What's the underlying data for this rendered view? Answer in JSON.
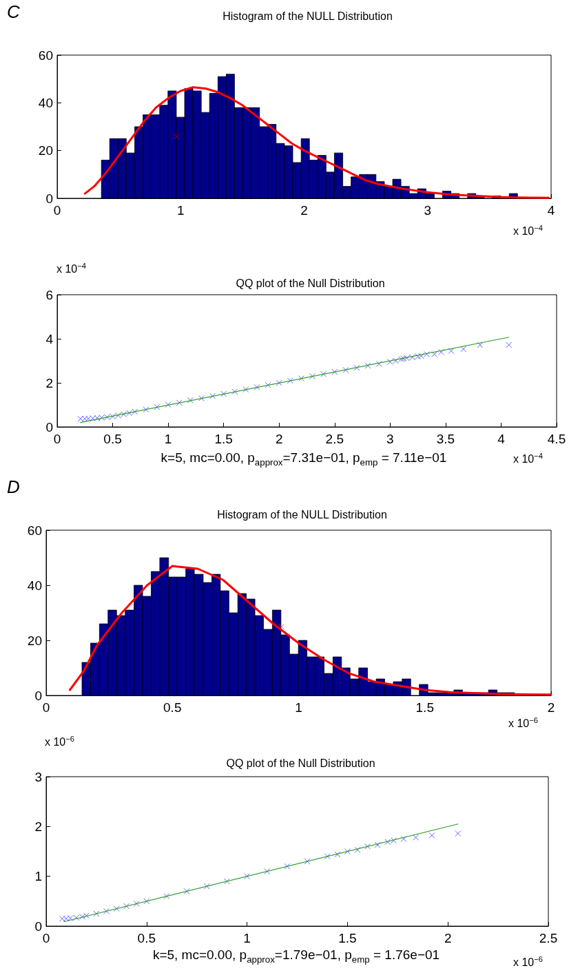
{
  "chart_data": [
    {
      "type": "histogram",
      "title": "Histogram of the NULL Distribution",
      "annotations": [
        "C",
        "x 10$^{−4}$"
      ],
      "xlim": [
        0,
        4
      ],
      "xticks": [
        0,
        1,
        2,
        3,
        4
      ],
      "ylim": [
        0,
        60
      ],
      "yticks": [
        0,
        20,
        40,
        60
      ],
      "grid": false,
      "series": [
        {
          "color": "#00008b",
          "bins": [
            0.358,
            0.425,
            0.493,
            0.56,
            0.628,
            0.695,
            0.762,
            0.83,
            0.897,
            0.965,
            1.032,
            1.099,
            1.167,
            1.234,
            1.302,
            1.369,
            1.436,
            1.504,
            1.571,
            1.639,
            1.706,
            1.773,
            1.841,
            1.908,
            1.976,
            2.043,
            2.11,
            2.178,
            2.245,
            2.313,
            2.38,
            2.447,
            2.515,
            2.582,
            2.65,
            2.717,
            2.784,
            2.852,
            2.919,
            2.987,
            3.054,
            3.121,
            3.189,
            3.256,
            3.324,
            3.391,
            3.458,
            3.526,
            3.593,
            3.661,
            3.728
          ],
          "values": [
            16,
            25,
            25,
            19,
            30,
            35,
            35,
            39,
            45,
            34,
            46,
            45,
            36,
            44,
            51,
            52,
            38,
            38,
            38,
            30,
            31,
            23,
            22,
            15,
            25,
            16,
            18,
            11,
            19,
            5,
            9,
            10,
            10,
            7,
            5,
            8,
            5,
            2,
            4,
            2,
            0,
            3,
            2,
            0,
            2,
            1,
            null,
            1,
            0,
            2
          ]
        },
        {
          "type": "line",
          "color": "#ff0000",
          "x": [
            0.225,
            0.3,
            0.4,
            0.5,
            0.6,
            0.7,
            0.8,
            0.9,
            1.0,
            1.1,
            1.2,
            1.3,
            1.4,
            1.5,
            1.6,
            1.7,
            1.8,
            1.9,
            2.0,
            2.1,
            2.2,
            2.3,
            2.4,
            2.5,
            2.6,
            2.8,
            3.0,
            3.2,
            3.4,
            3.6,
            3.8,
            3.98
          ],
          "values": [
            2,
            5,
            11,
            18,
            25,
            32,
            38,
            42,
            45,
            46.5,
            46,
            44.5,
            42,
            39,
            35,
            31,
            27,
            23,
            20,
            17.5,
            15,
            12.5,
            10,
            7.5,
            6,
            4,
            2.5,
            1.5,
            1,
            0.5,
            0.3,
            0.2
          ]
        },
        {
          "type": "scatter",
          "color": "#cc0000",
          "marker": "cross",
          "x": [
            0.967
          ],
          "values": [
            26
          ]
        }
      ]
    },
    {
      "type": "scatter",
      "title": "QQ plot of the Null Distribution",
      "annotations": [
        "x 10$^{−4}$",
        "x 10$^{−4}$",
        "k=5, mc=0.00, p$_{approx}$=7.31e−01, p$_{emp}$ = 7.11e−01"
      ],
      "xlim": [
        0,
        4.5
      ],
      "xticks": [
        0,
        0.5,
        1,
        1.5,
        2,
        2.5,
        3,
        3.5,
        4,
        4.5
      ],
      "ylim": [
        0,
        6
      ],
      "yticks": [
        0,
        2,
        4,
        6
      ],
      "grid": false,
      "series": [
        {
          "color": "#3c3cff",
          "marker": "cross",
          "x": [
            0.21,
            0.25,
            0.28,
            0.32,
            0.36,
            0.4,
            0.45,
            0.5,
            0.55,
            0.6,
            0.65,
            0.7,
            0.8,
            0.9,
            1.0,
            1.1,
            1.2,
            1.3,
            1.4,
            1.5,
            1.6,
            1.7,
            1.8,
            1.9,
            2.0,
            2.1,
            2.2,
            2.3,
            2.4,
            2.5,
            2.6,
            2.7,
            2.8,
            2.9,
            3.0,
            3.05,
            3.1,
            3.12,
            3.15,
            3.2,
            3.25,
            3.28,
            3.33,
            3.4,
            3.46,
            3.55,
            3.66,
            3.81,
            4.07
          ],
          "values": [
            0.37,
            0.37,
            0.38,
            0.39,
            0.4,
            0.42,
            0.44,
            0.47,
            0.52,
            0.57,
            0.63,
            0.69,
            0.79,
            0.9,
            1.01,
            1.1,
            1.21,
            1.3,
            1.4,
            1.5,
            1.6,
            1.7,
            1.8,
            1.9,
            2.0,
            2.1,
            2.2,
            2.3,
            2.4,
            2.5,
            2.58,
            2.68,
            2.78,
            2.86,
            2.95,
            3.0,
            3.08,
            3.1,
            3.12,
            3.16,
            3.2,
            3.22,
            3.3,
            3.3,
            3.4,
            3.45,
            3.53,
            3.72,
            3.72
          ]
        },
        {
          "type": "line",
          "color": "#2e9e2e",
          "x": [
            0.21,
            4.07
          ],
          "values": [
            0.2,
            4.07
          ]
        }
      ]
    },
    {
      "type": "histogram",
      "title": "Histogram of the NULL Distribution",
      "annotations": [
        "D",
        "x 10$^{−6}$"
      ],
      "xlim": [
        0,
        2
      ],
      "xticks": [
        0,
        0.5,
        1,
        1.5,
        2
      ],
      "ylim": [
        0,
        60
      ],
      "yticks": [
        0,
        20,
        40,
        60
      ],
      "grid": false,
      "series": [
        {
          "color": "#00008b",
          "bins": [
            0.142,
            0.176,
            0.211,
            0.245,
            0.279,
            0.313,
            0.348,
            0.382,
            0.416,
            0.45,
            0.485,
            0.519,
            0.553,
            0.587,
            0.622,
            0.656,
            0.69,
            0.724,
            0.759,
            0.793,
            0.827,
            0.861,
            0.896,
            0.93,
            0.964,
            0.999,
            1.033,
            1.067,
            1.101,
            1.136,
            1.17,
            1.204,
            1.238,
            1.273,
            1.307,
            1.341,
            1.375,
            1.41,
            1.444,
            1.478,
            1.512,
            1.547,
            1.581,
            1.615,
            1.649,
            1.684,
            1.718,
            1.752,
            1.786,
            1.821,
            1.855
          ],
          "values": [
            12,
            19,
            26,
            31,
            29,
            31,
            40,
            36,
            45,
            50,
            43,
            43,
            46,
            44,
            41,
            44,
            38,
            30,
            37,
            35,
            29,
            24,
            31,
            22,
            15,
            20,
            14,
            14,
            8,
            14,
            10,
            6,
            10,
            5,
            6,
            4,
            5,
            6,
            0,
            4,
            1,
            1,
            1,
            2,
            1,
            1,
            1,
            2,
            1,
            1
          ]
        },
        {
          "type": "line",
          "color": "#ff0000",
          "x": [
            0.094,
            0.15,
            0.2,
            0.3,
            0.4,
            0.5,
            0.6,
            0.7,
            0.8,
            0.9,
            1.0,
            1.1,
            1.2,
            1.3,
            1.4,
            1.5,
            1.6,
            1.8,
            2.0
          ],
          "values": [
            2,
            9,
            18,
            30,
            40,
            47,
            46,
            42,
            34,
            26,
            19,
            13,
            8,
            5,
            3.5,
            2,
            1.2,
            0.5,
            0.3
          ]
        },
        {
          "type": "scatter",
          "color": "#ff3333",
          "marker": "cross",
          "x": [
            0.932
          ],
          "values": [
            25
          ]
        }
      ]
    },
    {
      "type": "scatter",
      "title": "QQ plot of the Null Distribution",
      "annotations": [
        "x 10$^{−6}$",
        "x 10$^{−6}$",
        "k=5, mc=0.00, p$_{approx}$=1.79e−01, p$_{emp}$ = 1.76e−01"
      ],
      "xlim": [
        0,
        2.5
      ],
      "xticks": [
        0,
        0.5,
        1,
        1.5,
        2,
        2.5
      ],
      "ylim": [
        0,
        3
      ],
      "yticks": [
        0,
        1,
        2,
        3
      ],
      "grid": false,
      "series": [
        {
          "color": "#3c3cff",
          "marker": "cross",
          "x": [
            0.08,
            0.1,
            0.12,
            0.15,
            0.18,
            0.2,
            0.25,
            0.3,
            0.35,
            0.4,
            0.45,
            0.5,
            0.6,
            0.7,
            0.8,
            0.9,
            1.0,
            1.1,
            1.2,
            1.3,
            1.4,
            1.45,
            1.5,
            1.55,
            1.6,
            1.65,
            1.7,
            1.73,
            1.78,
            1.84,
            1.92,
            2.05
          ],
          "values": [
            0.15,
            0.15,
            0.16,
            0.17,
            0.19,
            0.21,
            0.25,
            0.3,
            0.35,
            0.4,
            0.45,
            0.5,
            0.6,
            0.7,
            0.8,
            0.9,
            1.0,
            1.1,
            1.2,
            1.3,
            1.4,
            1.44,
            1.5,
            1.53,
            1.6,
            1.63,
            1.69,
            1.72,
            1.75,
            1.78,
            1.82,
            1.86
          ]
        },
        {
          "type": "line",
          "color": "#2e9e2e",
          "x": [
            0.09,
            2.05
          ],
          "values": [
            0.09,
            2.05
          ]
        }
      ]
    }
  ]
}
